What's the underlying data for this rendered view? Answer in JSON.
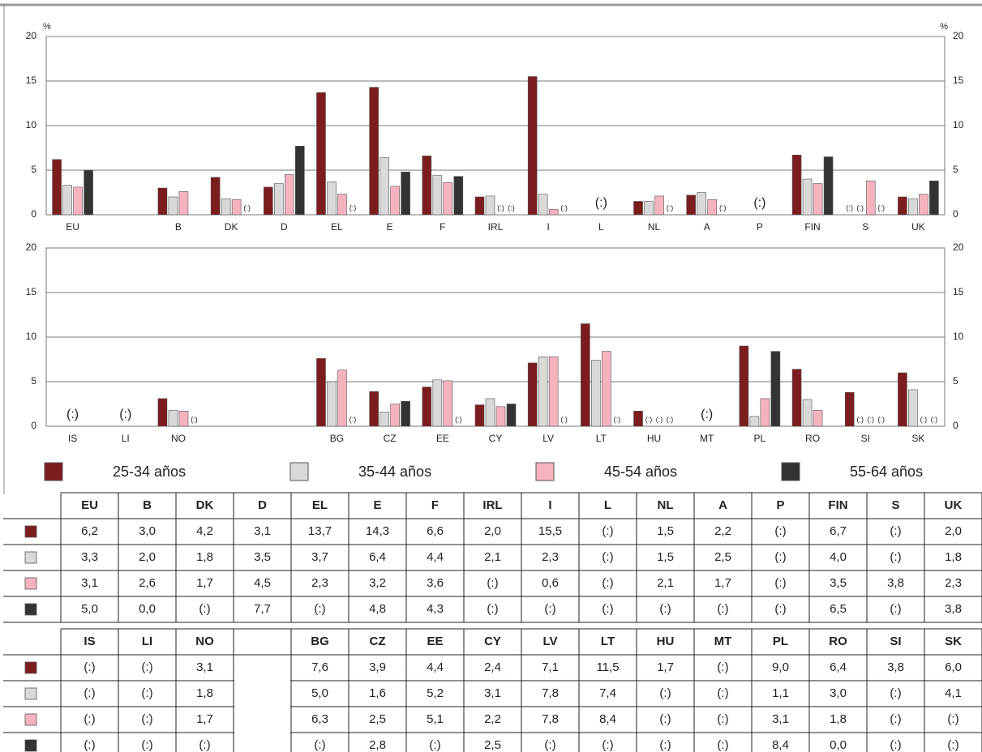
{
  "chart_data": [
    {
      "type": "bar",
      "y_label": "%",
      "categories": [
        "EU",
        null,
        "B",
        "DK",
        "D",
        "EL",
        "E",
        "F",
        "IRL",
        "I",
        "L",
        "NL",
        "A",
        "P",
        "FIN",
        "S",
        "UK"
      ],
      "ylim": [
        0,
        20
      ],
      "yticks": [
        0,
        5,
        10,
        15,
        20
      ],
      "grid": true,
      "series": [
        {
          "name": "25-34 años",
          "color": "#7b1c1f",
          "values": [
            6.2,
            null,
            3.0,
            4.2,
            3.1,
            13.7,
            14.3,
            6.6,
            2.0,
            15.5,
            null,
            1.5,
            2.2,
            null,
            6.7,
            null,
            2.0
          ],
          "value_labels": [
            "6,2",
            null,
            "3,0",
            "4,2",
            "3,1",
            "13,7",
            "14,3",
            "6,6",
            "2,0",
            "15,5",
            "(:)",
            "1,5",
            "2,2",
            "(:)",
            "6,7",
            "(:)",
            "2,0"
          ]
        },
        {
          "name": "35-44 años",
          "color": "#d9d9d9",
          "values": [
            3.3,
            null,
            2.0,
            1.8,
            3.5,
            3.7,
            6.4,
            4.4,
            2.1,
            2.3,
            null,
            1.5,
            2.5,
            null,
            4.0,
            null,
            1.8
          ],
          "value_labels": [
            "3,3",
            null,
            "2,0",
            "1,8",
            "3,5",
            "3,7",
            "6,4",
            "4,4",
            "2,1",
            "2,3",
            "(:)",
            "1,5",
            "2,5",
            "(:)",
            "4,0",
            "(:)",
            "1,8"
          ]
        },
        {
          "name": "45-54 años",
          "color": "#f5b3bf",
          "values": [
            3.1,
            null,
            2.6,
            1.7,
            4.5,
            2.3,
            3.2,
            3.6,
            null,
            0.6,
            null,
            2.1,
            1.7,
            null,
            3.5,
            3.8,
            2.3
          ],
          "value_labels": [
            "3,1",
            null,
            "2,6",
            "1,7",
            "4,5",
            "2,3",
            "3,2",
            "3,6",
            "(:)",
            "0,6",
            "(:)",
            "2,1",
            "1,7",
            "(:)",
            "3,5",
            "3,8",
            "2,3"
          ]
        },
        {
          "name": "55-64 años",
          "color": "#333333",
          "values": [
            5.0,
            null,
            0.0,
            null,
            7.7,
            null,
            4.8,
            4.3,
            null,
            null,
            null,
            null,
            null,
            null,
            6.5,
            null,
            3.8
          ],
          "value_labels": [
            "5,0",
            null,
            "0,0",
            "(:)",
            "7,7",
            "(:)",
            "4,8",
            "4,3",
            "(:)",
            "(:)",
            "(:)",
            "(:)",
            "(:)",
            "(:)",
            "6,5",
            "(:)",
            "3,8"
          ]
        }
      ]
    },
    {
      "type": "bar",
      "categories": [
        "IS",
        "LI",
        "NO",
        null,
        null,
        "BG",
        "CZ",
        "EE",
        "CY",
        "LV",
        "LT",
        "HU",
        "MT",
        "PL",
        "RO",
        "SI",
        "SK"
      ],
      "ylim": [
        0,
        20
      ],
      "yticks": [
        0,
        5,
        10,
        15,
        20
      ],
      "grid": true,
      "series": [
        {
          "color": "#7b1c1f",
          "values": [
            null,
            null,
            3.1,
            null,
            null,
            7.6,
            3.9,
            4.4,
            2.4,
            7.1,
            11.5,
            1.7,
            null,
            9.0,
            6.4,
            3.8,
            6.0
          ],
          "value_labels": [
            "(:)",
            "(:)",
            "3,1",
            null,
            null,
            "7,6",
            "3,9",
            "4,4",
            "2,4",
            "7,1",
            "11,5",
            "1,7",
            "(:)",
            "9,0",
            "6,4",
            "3,8",
            "6,0"
          ]
        },
        {
          "color": "#d9d9d9",
          "values": [
            null,
            null,
            1.8,
            null,
            null,
            5.0,
            1.6,
            5.2,
            3.1,
            7.8,
            7.4,
            null,
            null,
            1.1,
            3.0,
            null,
            4.1
          ],
          "value_labels": [
            "(:)",
            "(:)",
            "1,8",
            null,
            null,
            "5,0",
            "1,6",
            "5,2",
            "3,1",
            "7,8",
            "7,4",
            "(:)",
            "(:)",
            "1,1",
            "3,0",
            "(:)",
            "4,1"
          ]
        },
        {
          "color": "#f5b3bf",
          "values": [
            null,
            null,
            1.7,
            null,
            null,
            6.3,
            2.5,
            5.1,
            2.2,
            7.8,
            8.4,
            null,
            null,
            3.1,
            1.8,
            null,
            null
          ],
          "value_labels": [
            "(:)",
            "(:)",
            "1,7",
            null,
            null,
            "6,3",
            "2,5",
            "5,1",
            "2,2",
            "7,8",
            "8,4",
            "(:)",
            "(:)",
            "3,1",
            "1,8",
            "(:)",
            "(:)"
          ]
        },
        {
          "color": "#333333",
          "values": [
            null,
            null,
            null,
            null,
            null,
            null,
            2.8,
            null,
            2.5,
            null,
            null,
            null,
            null,
            8.4,
            0.0,
            null,
            null
          ],
          "value_labels": [
            "(:)",
            "(:)",
            "(:)",
            null,
            null,
            "(:)",
            "2,8",
            "(:)",
            "2,5",
            "(:)",
            "(:)",
            "(:)",
            "(:)",
            "8,4",
            "0,0",
            "(:)",
            "(:)"
          ]
        }
      ]
    }
  ]
}
